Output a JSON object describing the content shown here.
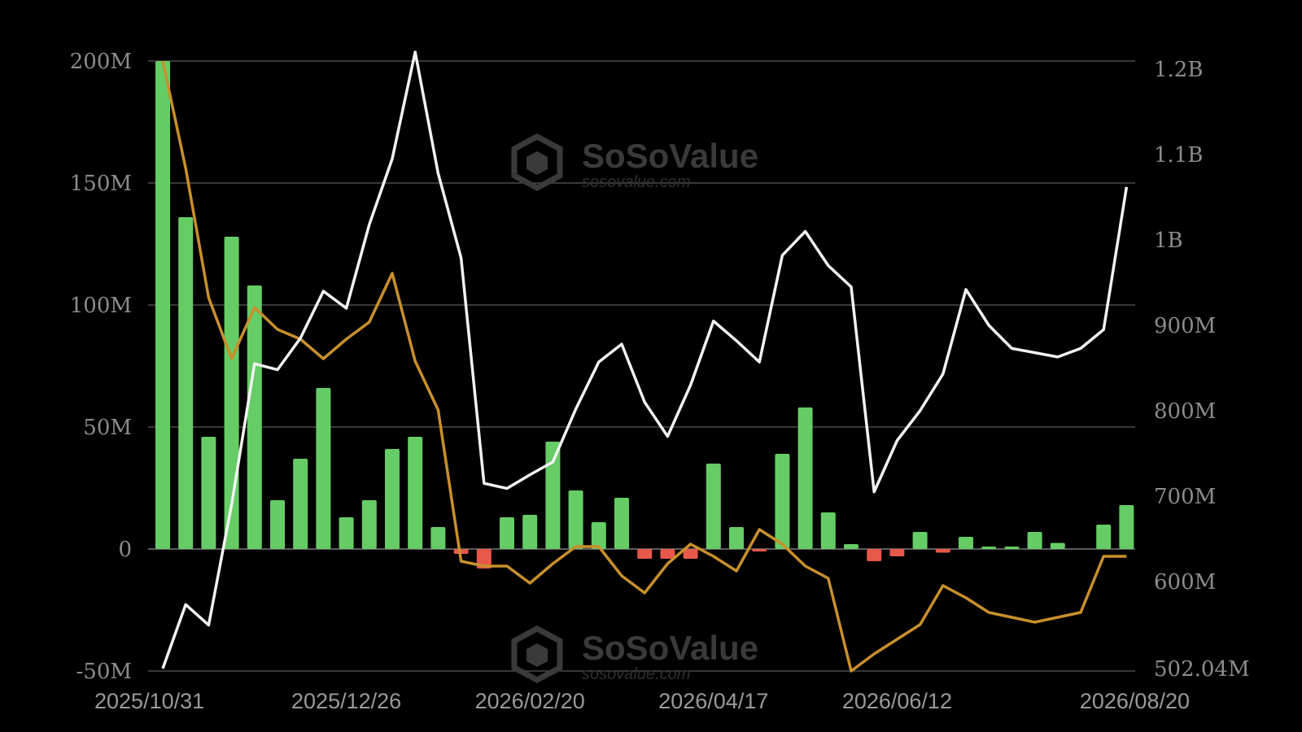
{
  "watermark": {
    "brand": "SoSoValue",
    "url": "sosovalue.com"
  },
  "chart_data": {
    "type": "bar",
    "left_axis": {
      "min": -50000000,
      "max": 200000000,
      "ticks": [
        -50000000,
        0,
        50000000,
        100000000,
        150000000,
        200000000
      ],
      "tick_labels": [
        "-50M",
        "0",
        "50M",
        "100M",
        "150M",
        "200M"
      ]
    },
    "right_axis": {
      "min": 502040000,
      "max": 1220000000,
      "ticks": [
        502040000,
        600000000,
        700000000,
        800000000,
        900000000,
        1000000000,
        1100000000,
        1200000000
      ],
      "tick_labels": [
        "502.04M",
        "600M",
        "700M",
        "800M",
        "900M",
        "1B",
        "1.1B",
        "1.2B"
      ]
    },
    "x_tick_labels": [
      {
        "index": 0,
        "label": "2025/10/31"
      },
      {
        "index": 8,
        "label": "2025/12/26"
      },
      {
        "index": 16,
        "label": "2026/02/20"
      },
      {
        "index": 24,
        "label": "2026/04/17"
      },
      {
        "index": 32,
        "label": "2026/06/12"
      },
      {
        "index": 42,
        "label": "2026/08/20"
      }
    ],
    "grid": true,
    "colors": {
      "positive": "#66cc66",
      "negative": "#e8584a",
      "white_line": "#f2f2f2",
      "gold_line": "#c8902c"
    },
    "series": [
      {
        "type": "bar",
        "axis": "left",
        "values": [
          200000000,
          136000000,
          46000000,
          128000000,
          108000000,
          20000000,
          37000000,
          66000000,
          13000000,
          20000000,
          41000000,
          46000000,
          9000000,
          -2000000,
          -8000000,
          13000000,
          14000000,
          44000000,
          24000000,
          11000000,
          21000000,
          -4000000,
          -4000000,
          -4000000,
          35000000,
          9000000,
          -1000000,
          39000000,
          58000000,
          15000000,
          2000000,
          -5000000,
          -3000000,
          7000000,
          -1500000,
          5000000,
          1000000,
          1000000,
          7000000,
          2500000,
          0,
          10000000,
          18000000
        ]
      },
      {
        "type": "line",
        "axis": "right",
        "values": [
          502000000,
          573000000,
          549000000,
          690000000,
          855000000,
          848000000,
          885000000,
          940000000,
          920000000,
          1018000000,
          1095000000,
          1220000000,
          1078000000,
          979000000,
          715000000,
          709000000,
          725000000,
          740000000,
          802000000,
          857000000,
          878000000,
          810000000,
          770000000,
          830000000,
          905000000,
          882000000,
          857000000,
          982000000,
          1010000000,
          970000000,
          945000000,
          705000000,
          765000000,
          800000000,
          843000000,
          942000000,
          900000000,
          873000000,
          868000000,
          863000000,
          873000000,
          895000000,
          1062000000
        ]
      },
      {
        "type": "line",
        "axis": "left",
        "values": [
          200000000,
          156000000,
          103000000,
          78000000,
          99000000,
          90000000,
          86000000,
          78000000,
          86000000,
          93000000,
          113000000,
          77000000,
          57000000,
          -5000000,
          -7000000,
          -7000000,
          -14000000,
          -6000000,
          1000000,
          1000000,
          -11000000,
          -18000000,
          -6000000,
          2000000,
          -3000000,
          -9000000,
          8000000,
          2000000,
          -7000000,
          -12000000,
          -50000000,
          -43000000,
          -37000000,
          -31000000,
          -15000000,
          -20000000,
          -26000000,
          -28000000,
          -30000000,
          -28000000,
          -26000000,
          -3000000,
          -3000000
        ]
      }
    ]
  }
}
